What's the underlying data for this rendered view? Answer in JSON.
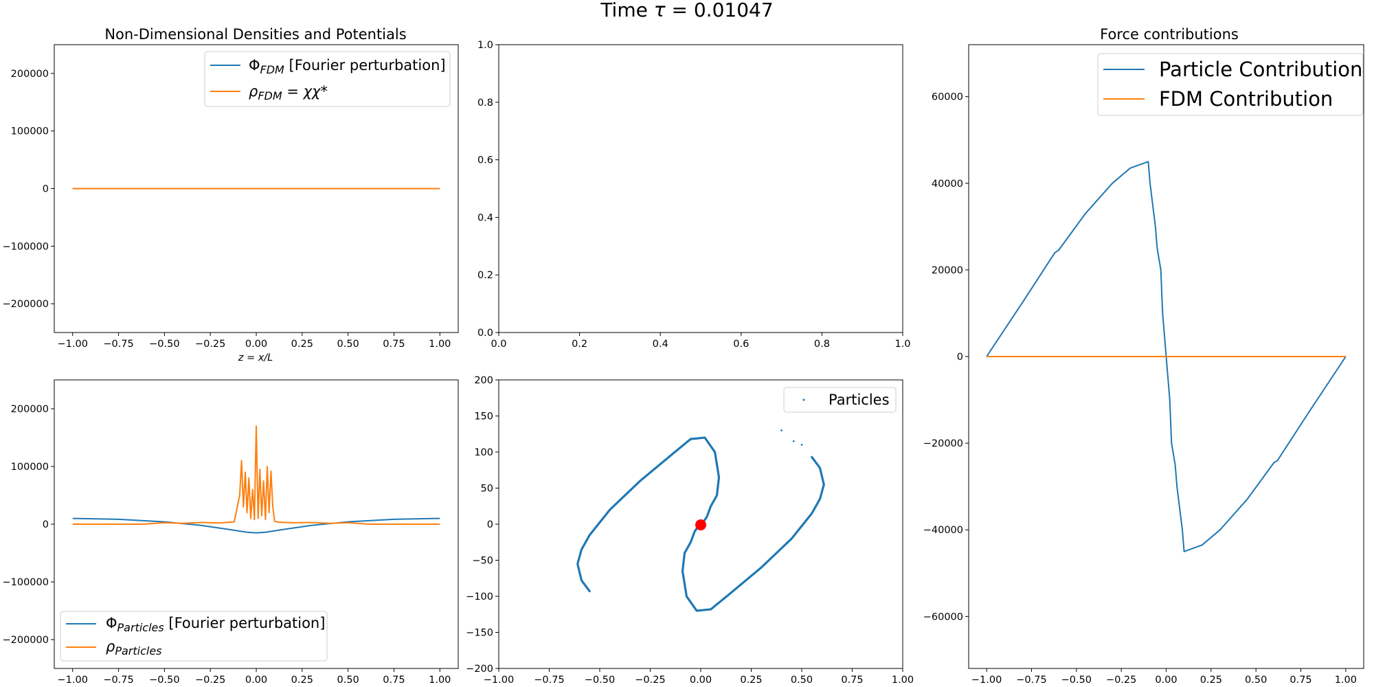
{
  "suptitle": {
    "prefix": "Time ",
    "tau": "τ",
    "rest": " = 0.01047"
  },
  "colors": {
    "blue": "#1f77b4",
    "orange": "#ff7f0e",
    "red": "#ff0000"
  },
  "panels": {
    "top_left": {
      "title": "Non-Dimensional Densities and Potentials",
      "xlabel": "z = x/L",
      "legend": [
        {
          "sym": "Φ",
          "sub": "FDM",
          "text": " [Fourier perturbation]"
        },
        {
          "sym": "ρ",
          "sub": "FDM",
          "text": " = χχ*"
        }
      ]
    },
    "bottom_left": {
      "legend": [
        {
          "sym": "Φ",
          "sub": "Particles",
          "text": " [Fourier perturbation]"
        },
        {
          "sym": "ρ",
          "sub": "Particles",
          "text": ""
        }
      ]
    },
    "bottom_middle": {
      "legend": [
        "Particles"
      ]
    },
    "right": {
      "title": "Force contributions",
      "legend": [
        "Particle Contribution",
        "FDM Contribution"
      ]
    }
  },
  "chart_data": [
    {
      "id": "densities_fdm",
      "type": "line",
      "title": "Non-Dimensional Densities and Potentials",
      "xlabel": "z = x/L",
      "xlim": [
        -1.1,
        1.1
      ],
      "ylim": [
        -250000,
        250000
      ],
      "xticks": [
        -1.0,
        -0.75,
        -0.5,
        -0.25,
        0.0,
        0.25,
        0.5,
        0.75,
        1.0
      ],
      "xtick_labels": [
        "−1.00",
        "−0.75",
        "−0.50",
        "−0.25",
        "0.00",
        "0.25",
        "0.50",
        "0.75",
        "1.00"
      ],
      "yticks": [
        -200000,
        -100000,
        0,
        100000,
        200000
      ],
      "ytick_labels": [
        "−200000",
        "−100000",
        "0",
        "100000",
        "200000"
      ],
      "legend_position": "upper right",
      "series": [
        {
          "name": "Φ_FDM [Fourier perturbation]",
          "color": "#1f77b4",
          "x": [
            -1.0,
            1.0
          ],
          "y": [
            0,
            0
          ]
        },
        {
          "name": "ρ_FDM = χχ*",
          "color": "#ff7f0e",
          "x": [
            -1.0,
            1.0
          ],
          "y": [
            0,
            0
          ]
        }
      ]
    },
    {
      "id": "empty_axes",
      "type": "line",
      "xlim": [
        0,
        1
      ],
      "ylim": [
        0,
        1
      ],
      "xticks": [
        0.0,
        0.2,
        0.4,
        0.6,
        0.8,
        1.0
      ],
      "xtick_labels": [
        "0.0",
        "0.2",
        "0.4",
        "0.6",
        "0.8",
        "1.0"
      ],
      "yticks": [
        0.0,
        0.2,
        0.4,
        0.6,
        0.8,
        1.0
      ],
      "ytick_labels": [
        "0.0",
        "0.2",
        "0.4",
        "0.6",
        "0.8",
        "1.0"
      ],
      "series": []
    },
    {
      "id": "densities_particles",
      "type": "line",
      "xlim": [
        -1.1,
        1.1
      ],
      "ylim": [
        -250000,
        250000
      ],
      "xticks": [
        -1.0,
        -0.75,
        -0.5,
        -0.25,
        0.0,
        0.25,
        0.5,
        0.75,
        1.0
      ],
      "xtick_labels": [
        "−1.00",
        "−0.75",
        "−0.50",
        "−0.25",
        "0.00",
        "0.25",
        "0.50",
        "0.75",
        "1.00"
      ],
      "yticks": [
        -200000,
        -100000,
        0,
        100000,
        200000
      ],
      "ytick_labels": [
        "−200000",
        "−100000",
        "0",
        "100000",
        "200000"
      ],
      "legend_position": "lower left",
      "series": [
        {
          "name": "Φ_Particles [Fourier perturbation]",
          "color": "#1f77b4",
          "x": [
            -1.0,
            -0.75,
            -0.5,
            -0.3,
            -0.15,
            -0.05,
            0.0,
            0.05,
            0.15,
            0.3,
            0.5,
            0.75,
            1.0
          ],
          "y": [
            10000,
            8500,
            4000,
            -2000,
            -9000,
            -14000,
            -15000,
            -14000,
            -9000,
            -2000,
            4000,
            8500,
            10000
          ]
        },
        {
          "name": "ρ_Particles",
          "color": "#ff7f0e",
          "x": [
            -1.0,
            -0.62,
            -0.5,
            -0.4,
            -0.3,
            -0.2,
            -0.12,
            -0.09,
            -0.08,
            -0.07,
            -0.06,
            -0.05,
            -0.04,
            -0.03,
            -0.02,
            -0.01,
            0.0,
            0.01,
            0.02,
            0.03,
            0.04,
            0.05,
            0.06,
            0.07,
            0.08,
            0.09,
            0.1,
            0.12,
            0.2,
            0.3,
            0.4,
            0.5,
            0.62,
            1.0
          ],
          "y": [
            0,
            0,
            2500,
            1500,
            3000,
            2000,
            4000,
            50000,
            110000,
            30000,
            90000,
            20000,
            80000,
            10000,
            60000,
            8000,
            170000,
            10000,
            95000,
            15000,
            75000,
            8000,
            100000,
            20000,
            92000,
            30000,
            5000,
            3500,
            2500,
            3000,
            1500,
            2500,
            0,
            0
          ]
        }
      ]
    },
    {
      "id": "phase_space",
      "type": "scatter",
      "xlim": [
        -1.0,
        1.0
      ],
      "ylim": [
        -200,
        200
      ],
      "xticks": [
        -1.0,
        -0.75,
        -0.5,
        -0.25,
        0.0,
        0.25,
        0.5,
        0.75,
        1.0
      ],
      "xtick_labels": [
        "−1.00",
        "−0.75",
        "−0.50",
        "−0.25",
        "0.00",
        "0.25",
        "0.50",
        "0.75",
        "1.00"
      ],
      "yticks": [
        -200,
        -150,
        -100,
        -50,
        0,
        50,
        100,
        150,
        200
      ],
      "ytick_labels": [
        "−200",
        "−150",
        "−100",
        "−50",
        "0",
        "50",
        "100",
        "150",
        "200"
      ],
      "legend_position": "upper right",
      "series": [
        {
          "name": "Particles",
          "color": "#1f77b4",
          "arms": [
            {
              "x": [
                -0.55,
                -0.59,
                -0.61,
                -0.59,
                -0.55,
                -0.45,
                -0.3,
                -0.15,
                -0.05,
                0.02,
                0.07,
                0.09,
                0.08,
                0.05,
                0.03,
                0.01
              ],
              "y": [
                -93,
                -78,
                -55,
                -35,
                -15,
                20,
                60,
                95,
                118,
                120,
                100,
                65,
                40,
                25,
                10,
                2
              ]
            },
            {
              "x": [
                0.55,
                0.59,
                0.61,
                0.59,
                0.55,
                0.45,
                0.3,
                0.15,
                0.05,
                -0.02,
                -0.07,
                -0.09,
                -0.08,
                -0.05,
                -0.03,
                -0.01
              ],
              "y": [
                93,
                78,
                55,
                35,
                15,
                -20,
                -60,
                -95,
                -118,
                -120,
                -100,
                -65,
                -40,
                -25,
                -10,
                -2
              ]
            }
          ],
          "strays": [
            {
              "x": 0.4,
              "y": 130
            },
            {
              "x": 0.46,
              "y": 115
            },
            {
              "x": 0.5,
              "y": 110
            }
          ]
        },
        {
          "name": "",
          "color": "#ff0000",
          "marker": "large",
          "points": [
            {
              "x": 0.0,
              "y": -1
            }
          ]
        }
      ]
    },
    {
      "id": "force_contributions",
      "type": "line",
      "title": "Force contributions",
      "xlim": [
        -1.1,
        1.1
      ],
      "ylim": [
        -72000,
        72000
      ],
      "xticks": [
        -1.0,
        -0.75,
        -0.5,
        -0.25,
        0.0,
        0.25,
        0.5,
        0.75,
        1.0
      ],
      "xtick_labels": [
        "−1.00",
        "−0.75",
        "−0.50",
        "−0.25",
        "0.00",
        "0.25",
        "0.50",
        "0.75",
        "1.00"
      ],
      "yticks": [
        -60000,
        -40000,
        -20000,
        0,
        20000,
        40000,
        60000
      ],
      "ytick_labels": [
        "−60000",
        "−40000",
        "−20000",
        "0",
        "20000",
        "40000",
        "60000"
      ],
      "legend_position": "upper right",
      "series": [
        {
          "name": "Particle Contribution",
          "color": "#1f77b4",
          "x": [
            -1.0,
            -0.8,
            -0.62,
            -0.6,
            -0.45,
            -0.3,
            -0.2,
            -0.1,
            -0.09,
            -0.06,
            -0.05,
            -0.03,
            -0.02,
            0.0,
            0.02,
            0.03,
            0.05,
            0.06,
            0.09,
            0.1,
            0.2,
            0.3,
            0.45,
            0.6,
            0.62,
            0.8,
            1.0
          ],
          "y": [
            0,
            12500,
            24000,
            24500,
            33000,
            40000,
            43500,
            45000,
            40000,
            30000,
            25000,
            20000,
            10000,
            0,
            -10000,
            -20000,
            -25000,
            -30000,
            -40000,
            -45000,
            -43500,
            -40000,
            -33000,
            -24500,
            -24000,
            -12500,
            0
          ]
        },
        {
          "name": "FDM Contribution",
          "color": "#ff7f0e",
          "x": [
            -1.0,
            1.0
          ],
          "y": [
            0,
            0
          ]
        }
      ]
    }
  ]
}
